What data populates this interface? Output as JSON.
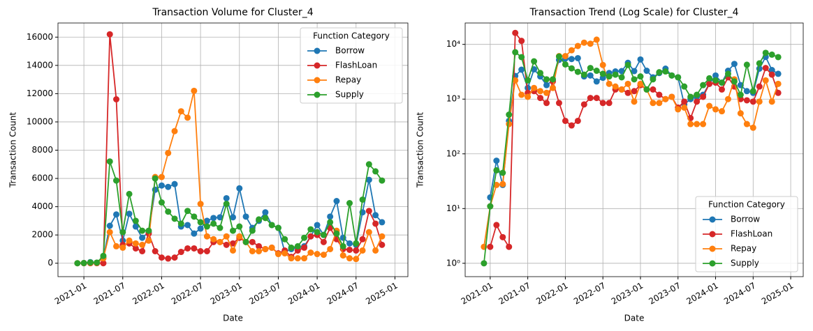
{
  "chart_data": [
    {
      "type": "line",
      "title": "Transaction Volume for Cluster_4",
      "x_label": "Date",
      "y_label": "Transaction Count",
      "x": [
        "2020-12",
        "2021-01",
        "2021-02",
        "2021-03",
        "2021-04",
        "2021-05",
        "2021-06",
        "2021-07",
        "2021-08",
        "2021-09",
        "2021-10",
        "2021-11",
        "2021-12",
        "2022-01",
        "2022-02",
        "2022-03",
        "2022-04",
        "2022-05",
        "2022-06",
        "2022-07",
        "2022-08",
        "2022-09",
        "2022-10",
        "2022-11",
        "2022-12",
        "2023-01",
        "2023-02",
        "2023-03",
        "2023-04",
        "2023-05",
        "2023-06",
        "2023-07",
        "2023-08",
        "2023-09",
        "2023-10",
        "2023-11",
        "2023-12",
        "2024-01",
        "2024-02",
        "2024-03",
        "2024-04",
        "2024-05",
        "2024-06",
        "2024-07",
        "2024-08",
        "2024-09",
        "2024-10",
        "2024-11"
      ],
      "series": [
        {
          "name": "Borrow",
          "color": "#1f77b4",
          "values": [
            null,
            16,
            75,
            27,
            400,
            2650,
            3450,
            1600,
            3500,
            2600,
            1800,
            2200,
            5200,
            5500,
            5400,
            5600,
            2600,
            2700,
            2100,
            2450,
            3000,
            3200,
            3250,
            4600,
            3250,
            5300,
            3300,
            2500,
            3000,
            3600,
            2700,
            2500,
            800,
            1000,
            1100,
            1200,
            1900,
            2700,
            2000,
            3300,
            4400,
            1800,
            1400,
            1300,
            3600,
            5900,
            3400,
            2900
          ]
        },
        {
          "name": "FlashLoan",
          "color": "#d62728",
          "values": [
            null,
            2,
            5,
            3,
            2,
            16200,
            11600,
            1300,
            1400,
            1050,
            850,
            2100,
            850,
            400,
            330,
            400,
            800,
            1050,
            1050,
            850,
            850,
            1500,
            1500,
            1300,
            1400,
            1800,
            1500,
            1500,
            1200,
            1000,
            1100,
            700,
            900,
            450,
            900,
            1100,
            1900,
            2000,
            1500,
            2500,
            1700,
            1000,
            950,
            900,
            1700,
            3700,
            2800,
            1300
          ]
        },
        {
          "name": "Repay",
          "color": "#ff7f0e",
          "values": [
            2,
            11,
            27,
            28,
            350,
            2200,
            1200,
            1100,
            1600,
            1400,
            1300,
            1600,
            6100,
            6100,
            7800,
            9350,
            10750,
            10300,
            12200,
            4200,
            1900,
            1700,
            1500,
            1900,
            900,
            1900,
            1500,
            850,
            850,
            1000,
            1100,
            650,
            700,
            350,
            350,
            350,
            750,
            650,
            600,
            1000,
            2300,
            550,
            350,
            300,
            900,
            2200,
            900,
            1900
          ]
        },
        {
          "name": "Supply",
          "color": "#2ca02c",
          "values": [
            1,
            11,
            50,
            45,
            520,
            7200,
            5850,
            2200,
            4900,
            3000,
            2300,
            2300,
            6000,
            4300,
            3650,
            3150,
            2800,
            3700,
            3300,
            2900,
            2600,
            2800,
            2500,
            4200,
            2300,
            2600,
            1500,
            2300,
            3100,
            3200,
            2700,
            2500,
            1700,
            1100,
            1200,
            1800,
            2400,
            2200,
            2000,
            2900,
            2100,
            1200,
            4250,
            1400,
            4500,
            7000,
            6500,
            5850
          ]
        }
      ],
      "xlim": [
        "2020-09",
        "2025-03"
      ],
      "xticks": [
        "2021-01",
        "2021-07",
        "2022-01",
        "2022-07",
        "2023-01",
        "2023-07",
        "2024-01",
        "2024-07",
        "2025-01"
      ],
      "ylim": [
        -950,
        17000
      ],
      "yticks": [
        0,
        2000,
        4000,
        6000,
        8000,
        10000,
        12000,
        14000,
        16000
      ],
      "log_y": false,
      "grid": true,
      "legend_title": "Function Category",
      "legend": "upper right"
    },
    {
      "type": "line",
      "title": "Transaction Trend (Log Scale) for Cluster_4",
      "x_label": "Date",
      "y_label": "Transaction Count",
      "x": [
        "2020-12",
        "2021-01",
        "2021-02",
        "2021-03",
        "2021-04",
        "2021-05",
        "2021-06",
        "2021-07",
        "2021-08",
        "2021-09",
        "2021-10",
        "2021-11",
        "2021-12",
        "2022-01",
        "2022-02",
        "2022-03",
        "2022-04",
        "2022-05",
        "2022-06",
        "2022-07",
        "2022-08",
        "2022-09",
        "2022-10",
        "2022-11",
        "2022-12",
        "2023-01",
        "2023-02",
        "2023-03",
        "2023-04",
        "2023-05",
        "2023-06",
        "2023-07",
        "2023-08",
        "2023-09",
        "2023-10",
        "2023-11",
        "2023-12",
        "2024-01",
        "2024-02",
        "2024-03",
        "2024-04",
        "2024-05",
        "2024-06",
        "2024-07",
        "2024-08",
        "2024-09",
        "2024-10",
        "2024-11"
      ],
      "series": [
        {
          "name": "Borrow",
          "color": "#1f77b4",
          "values": [
            null,
            16,
            75,
            27,
            400,
            2650,
            3450,
            1600,
            3500,
            2600,
            1800,
            2200,
            5200,
            5500,
            5400,
            5600,
            2600,
            2700,
            2100,
            2450,
            3000,
            3200,
            3250,
            4600,
            3250,
            5300,
            3300,
            2500,
            3000,
            3600,
            2700,
            2500,
            800,
            1000,
            1100,
            1200,
            1900,
            2700,
            2000,
            3300,
            4400,
            1800,
            1400,
            1300,
            3600,
            5900,
            3400,
            2900
          ]
        },
        {
          "name": "FlashLoan",
          "color": "#d62728",
          "values": [
            null,
            2,
            5,
            3,
            2,
            16200,
            11600,
            1300,
            1400,
            1050,
            850,
            2100,
            850,
            400,
            330,
            400,
            800,
            1050,
            1050,
            850,
            850,
            1500,
            1500,
            1300,
            1400,
            1800,
            1500,
            1500,
            1200,
            1000,
            1100,
            700,
            900,
            450,
            900,
            1100,
            1900,
            2000,
            1500,
            2500,
            1700,
            1000,
            950,
            900,
            1700,
            3700,
            2800,
            1300
          ]
        },
        {
          "name": "Repay",
          "color": "#ff7f0e",
          "values": [
            2,
            11,
            27,
            28,
            350,
            2200,
            1200,
            1100,
            1600,
            1400,
            1300,
            1600,
            6100,
            6100,
            7800,
            9350,
            10750,
            10300,
            12200,
            4200,
            1900,
            1700,
            1500,
            1900,
            900,
            1900,
            1500,
            850,
            850,
            1000,
            1100,
            650,
            700,
            350,
            350,
            350,
            750,
            650,
            600,
            1000,
            2300,
            550,
            350,
            300,
            900,
            2200,
            900,
            1900
          ]
        },
        {
          "name": "Supply",
          "color": "#2ca02c",
          "values": [
            1,
            11,
            50,
            45,
            520,
            7200,
            5850,
            2200,
            4900,
            3000,
            2300,
            2300,
            6000,
            4300,
            3650,
            3150,
            2800,
            3700,
            3300,
            2900,
            2600,
            2800,
            2500,
            4200,
            2300,
            2600,
            1500,
            2300,
            3100,
            3200,
            2700,
            2500,
            1700,
            1100,
            1200,
            1800,
            2400,
            2200,
            2000,
            2900,
            2100,
            1200,
            4250,
            1400,
            4500,
            7000,
            6500,
            5850
          ]
        }
      ],
      "xlim": [
        "2020-09",
        "2025-03"
      ],
      "xticks": [
        "2021-01",
        "2021-07",
        "2022-01",
        "2022-07",
        "2023-01",
        "2023-07",
        "2024-01",
        "2024-07",
        "2025-01"
      ],
      "ylim": [
        0.57,
        24600
      ],
      "yticks": [
        {
          "value": 1,
          "label": "10⁰"
        },
        {
          "value": 10,
          "label": "10¹"
        },
        {
          "value": 100,
          "label": "10²"
        },
        {
          "value": 1000,
          "label": "10³"
        },
        {
          "value": 10000,
          "label": "10⁴"
        }
      ],
      "log_y": true,
      "grid": true,
      "legend_title": "Function Category",
      "legend": "lower right"
    }
  ]
}
